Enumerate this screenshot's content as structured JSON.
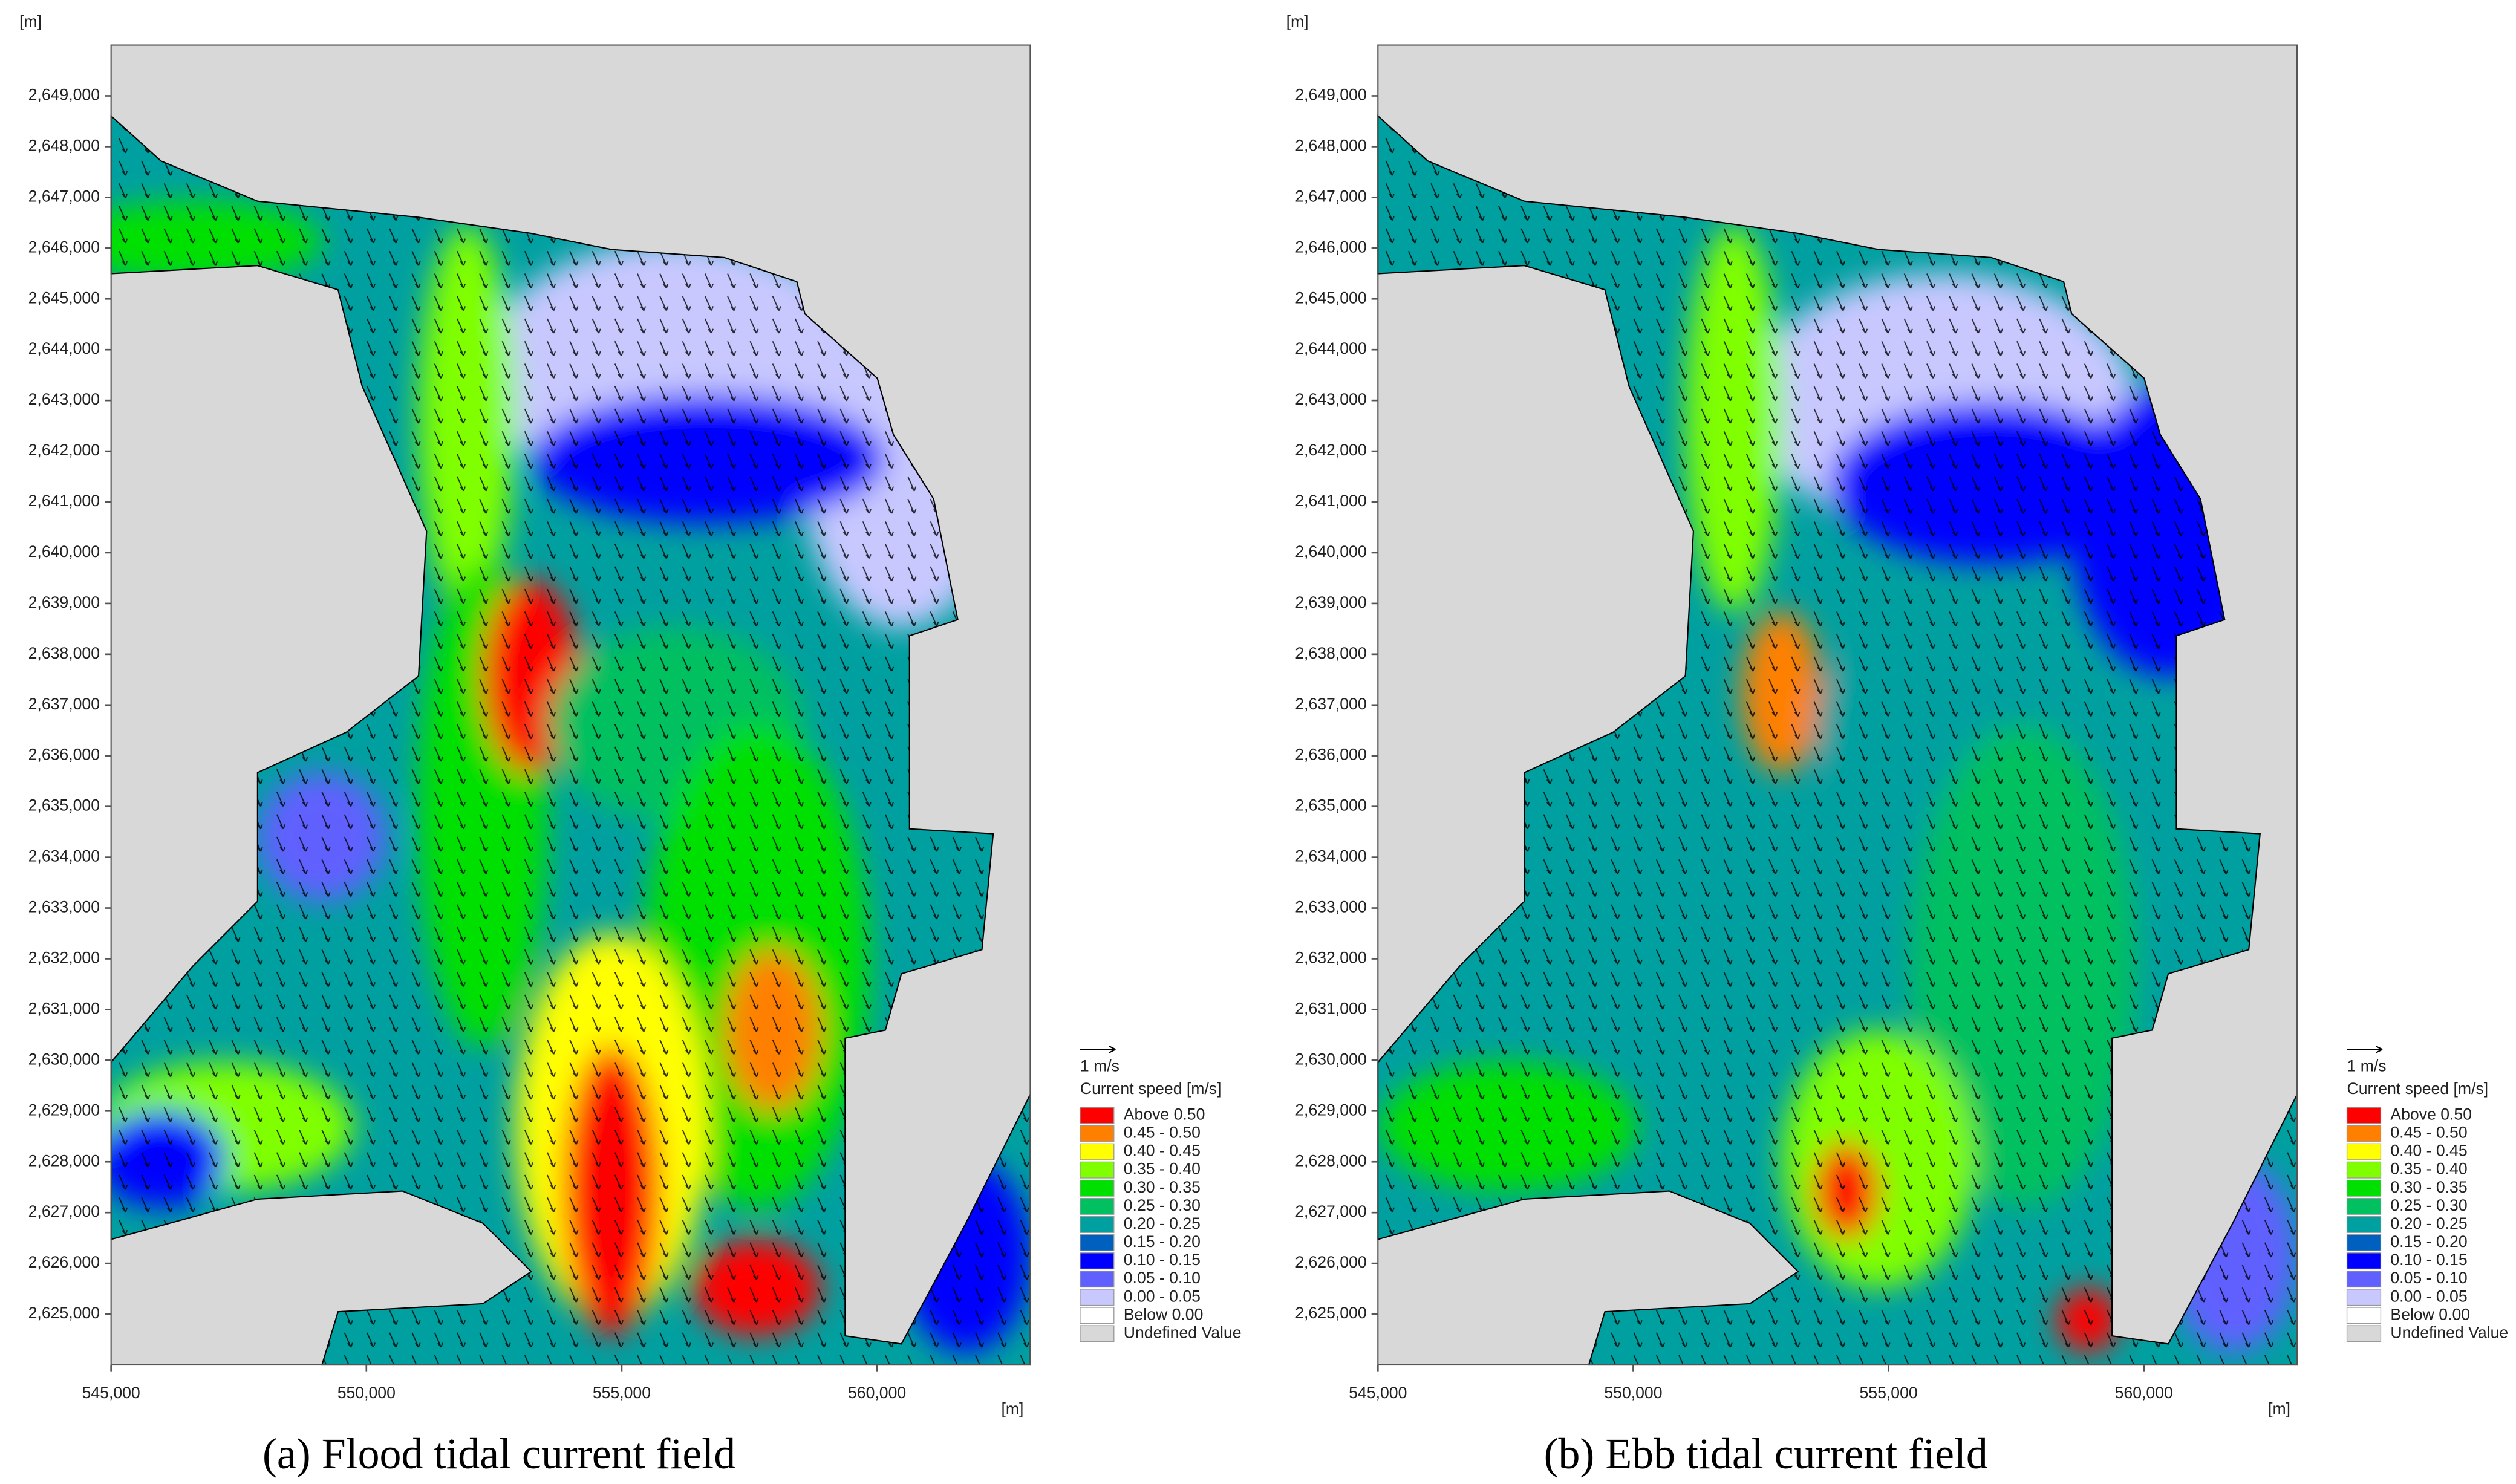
{
  "chart_data": [
    {
      "type": "contour",
      "caption": "(a) Flood tidal current field",
      "x_unit": "[m]",
      "y_unit": "[m]",
      "xlim": [
        545000,
        563000
      ],
      "xticks": [
        {
          "value": 545000,
          "label": "545,000"
        },
        {
          "value": 550000,
          "label": "550,000"
        },
        {
          "value": 555000,
          "label": "555,000"
        },
        {
          "value": 560000,
          "label": "560,000"
        }
      ],
      "ylim": [
        2624000,
        2650000
      ],
      "yticks": [
        {
          "value": 2625000,
          "label": "2,625,000"
        },
        {
          "value": 2626000,
          "label": "2,626,000"
        },
        {
          "value": 2627000,
          "label": "2,627,000"
        },
        {
          "value": 2628000,
          "label": "2,628,000"
        },
        {
          "value": 2629000,
          "label": "2,629,000"
        },
        {
          "value": 2630000,
          "label": "2,630,000"
        },
        {
          "value": 2631000,
          "label": "2,631,000"
        },
        {
          "value": 2632000,
          "label": "2,632,000"
        },
        {
          "value": 2633000,
          "label": "2,633,000"
        },
        {
          "value": 2634000,
          "label": "2,634,000"
        },
        {
          "value": 2635000,
          "label": "2,635,000"
        },
        {
          "value": 2636000,
          "label": "2,636,000"
        },
        {
          "value": 2637000,
          "label": "2,637,000"
        },
        {
          "value": 2638000,
          "label": "2,638,000"
        },
        {
          "value": 2639000,
          "label": "2,639,000"
        },
        {
          "value": 2640000,
          "label": "2,640,000"
        },
        {
          "value": 2641000,
          "label": "2,641,000"
        },
        {
          "value": 2642000,
          "label": "2,642,000"
        },
        {
          "value": 2643000,
          "label": "2,643,000"
        },
        {
          "value": 2644000,
          "label": "2,644,000"
        },
        {
          "value": 2645000,
          "label": "2,645,000"
        },
        {
          "value": 2646000,
          "label": "2,646,000"
        },
        {
          "value": 2647000,
          "label": "2,647,000"
        },
        {
          "value": 2648000,
          "label": "2,648,000"
        },
        {
          "value": 2649000,
          "label": "2,649,000"
        }
      ],
      "legend": {
        "scale_label": "1 m/s",
        "title": "Current speed [m/s]",
        "items": [
          {
            "label": "Above 0.50",
            "color": "#ff0000"
          },
          {
            "label": "0.45 - 0.50",
            "color": "#ff8000"
          },
          {
            "label": "0.40 - 0.45",
            "color": "#ffff00"
          },
          {
            "label": "0.35 - 0.40",
            "color": "#80ff00"
          },
          {
            "label": "0.30 - 0.35",
            "color": "#00e000"
          },
          {
            "label": "0.25 - 0.30",
            "color": "#00c060"
          },
          {
            "label": "0.20 - 0.25",
            "color": "#00a0a0"
          },
          {
            "label": "0.15 - 0.20",
            "color": "#0060c0"
          },
          {
            "label": "0.10 - 0.15",
            "color": "#0000ff"
          },
          {
            "label": "0.05 - 0.10",
            "color": "#6060ff"
          },
          {
            "label": "0.00 - 0.05",
            "color": "#c8c8ff"
          },
          {
            "label": "Below 0.00",
            "color": "#ffffff"
          },
          {
            "label": "Undefined Value",
            "color": "#d8d8d8"
          }
        ]
      }
    },
    {
      "type": "contour",
      "caption": "(b) Ebb tidal current field",
      "x_unit": "[m]",
      "y_unit": "[m]",
      "xlim": [
        545000,
        563000
      ],
      "xticks": [
        {
          "value": 545000,
          "label": "545,000"
        },
        {
          "value": 550000,
          "label": "550,000"
        },
        {
          "value": 555000,
          "label": "555,000"
        },
        {
          "value": 560000,
          "label": "560,000"
        }
      ],
      "ylim": [
        2624000,
        2650000
      ],
      "yticks": [
        {
          "value": 2625000,
          "label": "2,625,000"
        },
        {
          "value": 2626000,
          "label": "2,626,000"
        },
        {
          "value": 2627000,
          "label": "2,627,000"
        },
        {
          "value": 2628000,
          "label": "2,628,000"
        },
        {
          "value": 2629000,
          "label": "2,629,000"
        },
        {
          "value": 2630000,
          "label": "2,630,000"
        },
        {
          "value": 2631000,
          "label": "2,631,000"
        },
        {
          "value": 2632000,
          "label": "2,632,000"
        },
        {
          "value": 2633000,
          "label": "2,633,000"
        },
        {
          "value": 2634000,
          "label": "2,634,000"
        },
        {
          "value": 2635000,
          "label": "2,635,000"
        },
        {
          "value": 2636000,
          "label": "2,636,000"
        },
        {
          "value": 2637000,
          "label": "2,637,000"
        },
        {
          "value": 2638000,
          "label": "2,638,000"
        },
        {
          "value": 2639000,
          "label": "2,639,000"
        },
        {
          "value": 2640000,
          "label": "2,640,000"
        },
        {
          "value": 2641000,
          "label": "2,641,000"
        },
        {
          "value": 2642000,
          "label": "2,642,000"
        },
        {
          "value": 2643000,
          "label": "2,643,000"
        },
        {
          "value": 2644000,
          "label": "2,644,000"
        },
        {
          "value": 2645000,
          "label": "2,645,000"
        },
        {
          "value": 2646000,
          "label": "2,646,000"
        },
        {
          "value": 2647000,
          "label": "2,647,000"
        },
        {
          "value": 2648000,
          "label": "2,648,000"
        },
        {
          "value": 2649000,
          "label": "2,649,000"
        }
      ],
      "legend": {
        "scale_label": "1 m/s",
        "title": "Current speed [m/s]",
        "items": [
          {
            "label": "Above 0.50",
            "color": "#ff0000"
          },
          {
            "label": "0.45 - 0.50",
            "color": "#ff8000"
          },
          {
            "label": "0.40 - 0.45",
            "color": "#ffff00"
          },
          {
            "label": "0.35 - 0.40",
            "color": "#80ff00"
          },
          {
            "label": "0.30 - 0.35",
            "color": "#00e000"
          },
          {
            "label": "0.25 - 0.30",
            "color": "#00c060"
          },
          {
            "label": "0.20 - 0.25",
            "color": "#00a0a0"
          },
          {
            "label": "0.15 - 0.20",
            "color": "#0060c0"
          },
          {
            "label": "0.10 - 0.15",
            "color": "#0000ff"
          },
          {
            "label": "0.05 - 0.10",
            "color": "#6060ff"
          },
          {
            "label": "0.00 - 0.05",
            "color": "#c8c8ff"
          },
          {
            "label": "Below 0.00",
            "color": "#ffffff"
          },
          {
            "label": "Undefined Value",
            "color": "#d8d8d8"
          }
        ]
      }
    }
  ]
}
